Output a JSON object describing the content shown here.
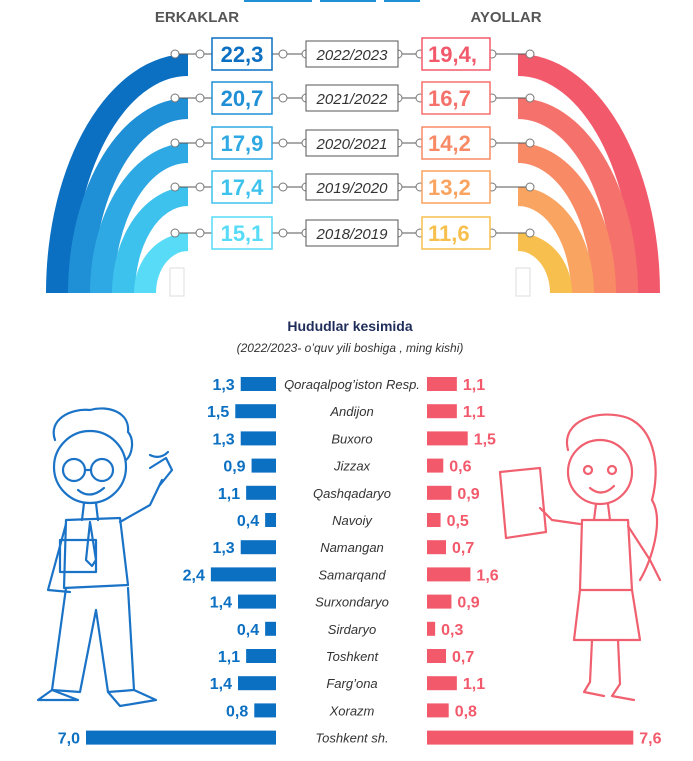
{
  "header": {
    "left_label": "ERKAKLAR",
    "right_label": "AYOLLAR"
  },
  "years_chart": {
    "rows": [
      {
        "year": "2022/2023",
        "men": "22,3",
        "women": "19,4,",
        "men_color": "#0b6fc2",
        "women_color": "#f25a6c"
      },
      {
        "year": "2021/2022",
        "men": "20,7",
        "women": "16,7",
        "men_color": "#1f8fd6",
        "women_color": "#f5716b"
      },
      {
        "year": "2020/2021",
        "men": "17,9",
        "women": "14,2",
        "men_color": "#2fa9e3",
        "women_color": "#f88a66"
      },
      {
        "year": "2019/2020",
        "men": "17,4",
        "women": "13,2",
        "men_color": "#3dc2ee",
        "women_color": "#f9a461"
      },
      {
        "year": "2018/2019",
        "men": "15,1",
        "women": "11,6",
        "men_color": "#57dbf6",
        "women_color": "#f7c04e"
      }
    ]
  },
  "section": {
    "title": "Hududlar kesimida",
    "subtitle": "(2022/2023- o’quv yili boshiga , ming kishi)"
  },
  "colors": {
    "men_bar": "#0b6fc2",
    "women_bar": "#f25a6c",
    "men_text": "#0b6fc2",
    "women_text": "#f25a6c",
    "man_line": "#1a73c7",
    "woman_line": "#f0606f"
  },
  "chart_data": {
    "type": "bar",
    "title": "Hududlar kesimida",
    "subtitle": "(2022/2023- o’quv yili boshiga , ming kishi)",
    "orientation": "horizontal-diverging",
    "categories": [
      "Qoraqalpog’iston Resp.",
      "Andijon",
      "Buxoro",
      "Jizzax",
      "Qashqadaryo",
      "Navoiy",
      "Namangan",
      "Samarqand",
      "Surxondaryo",
      "Sirdaryo",
      "Toshkent",
      "Farg’ona",
      "Xorazm",
      "Toshkent sh."
    ],
    "series": [
      {
        "name": "ERKAKLAR",
        "values": [
          1.3,
          1.5,
          1.3,
          0.9,
          1.1,
          0.4,
          1.3,
          2.4,
          1.4,
          0.4,
          1.1,
          1.4,
          0.8,
          7.0
        ],
        "labels": [
          "1,3",
          "1,5",
          "1,3",
          "0,9",
          "1,1",
          "0,4",
          "1,3",
          "2,4",
          "1,4",
          "0,4",
          "1,1",
          "1,4",
          "0,8",
          "7,0"
        ]
      },
      {
        "name": "AYOLLAR",
        "values": [
          1.1,
          1.1,
          1.5,
          0.6,
          0.9,
          0.5,
          0.7,
          1.6,
          0.9,
          0.3,
          0.7,
          1.1,
          0.8,
          7.6
        ],
        "labels": [
          "1,1",
          "1,1",
          "1,5",
          "0,6",
          "0,9",
          "0,5",
          "0,7",
          "1,6",
          "0,9",
          "0,3",
          "0,7",
          "1,1",
          "0,8",
          "7,6"
        ]
      }
    ],
    "years_series": {
      "categories": [
        "2022/2023",
        "2021/2022",
        "2020/2021",
        "2019/2020",
        "2018/2019"
      ],
      "ERKAKLAR": [
        22.3,
        20.7,
        17.9,
        17.4,
        15.1
      ],
      "AYOLLAR": [
        19.4,
        16.7,
        14.2,
        13.2,
        11.6
      ]
    }
  }
}
